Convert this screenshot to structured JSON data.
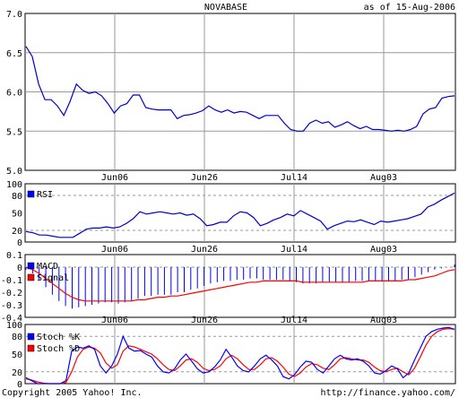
{
  "header": {
    "title": "NOVABASE",
    "as_of": "as of 15-Aug-2006"
  },
  "footer": {
    "copyright": "Copyright 2005 Yahoo! Inc.",
    "url": "http://finance.yahoo.com/"
  },
  "colors": {
    "price_line": "#0000cc",
    "rsi_line": "#0000cc",
    "macd": "#0000ff",
    "signal": "#ff0000",
    "stoch_k": "#0000ff",
    "stoch_d": "#ff0000",
    "grid": "#999999"
  },
  "chart_data": [
    {
      "type": "line",
      "panel": "price",
      "title": "NOVABASE",
      "ylim": [
        5.0,
        7.0
      ],
      "y_ticks": [
        "5.0",
        "5.5",
        "6.0",
        "6.5",
        "7.0"
      ],
      "x_ticks": [
        "Jun06",
        "Jun26",
        "Jul14",
        "Aug03"
      ],
      "series": [
        {
          "values": [
            6.58,
            6.45,
            6.1,
            5.9,
            5.9,
            5.82,
            5.7,
            5.88,
            6.1,
            6.02,
            5.98,
            6.0,
            5.95,
            5.85,
            5.73,
            5.82,
            5.85,
            5.96,
            5.96,
            5.8,
            5.78,
            5.77,
            5.77,
            5.77,
            5.66,
            5.7,
            5.71,
            5.73,
            5.76,
            5.82,
            5.77,
            5.74,
            5.77,
            5.73,
            5.75,
            5.74,
            5.7,
            5.66,
            5.7,
            5.7,
            5.7,
            5.6,
            5.52,
            5.5,
            5.5,
            5.6,
            5.64,
            5.6,
            5.62,
            5.55,
            5.58,
            5.62,
            5.57,
            5.53,
            5.56,
            5.52,
            5.52,
            5.51,
            5.5,
            5.51,
            5.5,
            5.52,
            5.56,
            5.72,
            5.78,
            5.8,
            5.92,
            5.94,
            5.95
          ]
        }
      ]
    },
    {
      "type": "line",
      "panel": "rsi",
      "ylim": [
        0,
        100
      ],
      "y_ticks": [
        "0",
        "20",
        "50",
        "80",
        "100"
      ],
      "legend": [
        "RSI"
      ],
      "series": [
        {
          "name": "RSI",
          "values": [
            18,
            16,
            12,
            12,
            10,
            8,
            8,
            8,
            15,
            22,
            24,
            24,
            26,
            24,
            26,
            32,
            40,
            52,
            48,
            50,
            52,
            50,
            48,
            50,
            46,
            48,
            40,
            28,
            30,
            34,
            34,
            45,
            52,
            50,
            42,
            28,
            32,
            38,
            42,
            48,
            45,
            54,
            48,
            42,
            36,
            22,
            28,
            32,
            36,
            35,
            38,
            34,
            30,
            36,
            34,
            36,
            38,
            40,
            44,
            48,
            60,
            65,
            72,
            78,
            84
          ]
        }
      ]
    },
    {
      "type": "bar",
      "panel": "macd",
      "ylim": [
        -0.4,
        0.1
      ],
      "y_ticks": [
        "0.1",
        "0",
        "-0.1",
        "-0.2",
        "-0.3",
        "-0.4"
      ],
      "x_ticks": [
        "Jun06",
        "Jun26",
        "Jul14",
        "Aug03"
      ],
      "legend": [
        "MACD",
        "Signal"
      ],
      "series": [
        {
          "name": "MACD",
          "values": [
            -0.02,
            -0.05,
            -0.1,
            -0.16,
            -0.22,
            -0.27,
            -0.31,
            -0.33,
            -0.32,
            -0.31,
            -0.3,
            -0.29,
            -0.28,
            -0.28,
            -0.29,
            -0.28,
            -0.27,
            -0.25,
            -0.23,
            -0.23,
            -0.22,
            -0.22,
            -0.22,
            -0.2,
            -0.2,
            -0.18,
            -0.17,
            -0.15,
            -0.13,
            -0.12,
            -0.11,
            -0.11,
            -0.1,
            -0.1,
            -0.09,
            -0.09,
            -0.1,
            -0.1,
            -0.1,
            -0.1,
            -0.11,
            -0.12,
            -0.13,
            -0.13,
            -0.13,
            -0.12,
            -0.12,
            -0.12,
            -0.12,
            -0.12,
            -0.11,
            -0.11,
            -0.11,
            -0.11,
            -0.11,
            -0.11,
            -0.11,
            -0.1,
            -0.1,
            -0.08,
            -0.06,
            -0.04,
            -0.02,
            -0.01,
            0.0,
            0.02
          ]
        },
        {
          "name": "Signal",
          "values": [
            0.0,
            -0.02,
            -0.05,
            -0.09,
            -0.13,
            -0.17,
            -0.21,
            -0.24,
            -0.26,
            -0.27,
            -0.27,
            -0.27,
            -0.27,
            -0.27,
            -0.27,
            -0.27,
            -0.27,
            -0.26,
            -0.26,
            -0.25,
            -0.24,
            -0.24,
            -0.23,
            -0.23,
            -0.22,
            -0.21,
            -0.2,
            -0.19,
            -0.18,
            -0.17,
            -0.16,
            -0.15,
            -0.14,
            -0.13,
            -0.12,
            -0.12,
            -0.11,
            -0.11,
            -0.11,
            -0.11,
            -0.11,
            -0.11,
            -0.12,
            -0.12,
            -0.12,
            -0.12,
            -0.12,
            -0.12,
            -0.12,
            -0.12,
            -0.12,
            -0.12,
            -0.11,
            -0.11,
            -0.11,
            -0.11,
            -0.11,
            -0.11,
            -0.1,
            -0.1,
            -0.09,
            -0.08,
            -0.07,
            -0.05,
            -0.03,
            -0.02
          ]
        }
      ]
    },
    {
      "type": "line",
      "panel": "stochastic",
      "ylim": [
        0,
        100
      ],
      "y_ticks": [
        "0",
        "20",
        "50",
        "80",
        "100"
      ],
      "x_ticks": [
        "Jun06",
        "Jun26",
        "Jul14",
        "Aug03"
      ],
      "legend": [
        "Stoch %K",
        "Stoch %D"
      ],
      "series": [
        {
          "name": "Stoch %K",
          "values": [
            10,
            5,
            0,
            0,
            0,
            0,
            0,
            5,
            55,
            62,
            60,
            64,
            58,
            30,
            18,
            30,
            50,
            80,
            60,
            55,
            56,
            50,
            45,
            30,
            20,
            18,
            25,
            40,
            50,
            38,
            25,
            18,
            20,
            28,
            40,
            58,
            45,
            30,
            22,
            20,
            30,
            42,
            48,
            40,
            30,
            12,
            8,
            15,
            28,
            38,
            36,
            24,
            18,
            30,
            42,
            48,
            42,
            40,
            42,
            38,
            30,
            18,
            16,
            22,
            30,
            25,
            10,
            18,
            40,
            60,
            80,
            88,
            92,
            94,
            95,
            92
          ]
        },
        {
          "name": "Stoch %D",
          "values": [
            8,
            6,
            3,
            1,
            0,
            0,
            0,
            2,
            20,
            45,
            58,
            62,
            60,
            52,
            35,
            26,
            32,
            55,
            64,
            62,
            58,
            54,
            50,
            42,
            32,
            24,
            22,
            30,
            40,
            42,
            36,
            26,
            22,
            24,
            30,
            42,
            48,
            42,
            32,
            24,
            24,
            32,
            42,
            44,
            38,
            28,
            16,
            12,
            18,
            28,
            34,
            32,
            26,
            24,
            32,
            42,
            44,
            42,
            40,
            40,
            36,
            28,
            22,
            20,
            24,
            26,
            20,
            15,
            26,
            45,
            65,
            80,
            88,
            92,
            93,
            92
          ]
        }
      ]
    }
  ]
}
